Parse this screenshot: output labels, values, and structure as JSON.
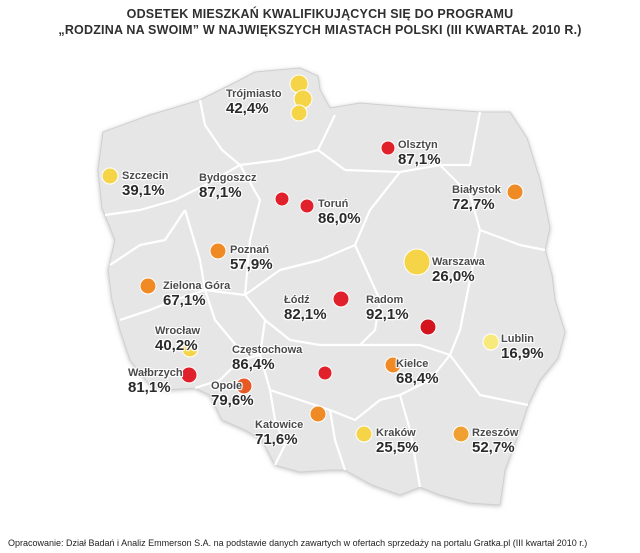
{
  "title": {
    "line1": "ODSETEK MIESZKAŃ KWALIFIKUJĄCYCH SIĘ DO PROGRAMU",
    "line2": "„RODZINA NA SWOIM” W NAJWIĘKSZYCH MIASTACH POLSKI (III KWARTAŁ 2010 R.)"
  },
  "footer": "Opracowanie: Dział Badań i Analiz Emmerson S.A. na podstawie danych zawartych w ofertach sprzedaży na portalu Gratka.pl (III kwartał 2010 r.)",
  "colors": {
    "map_fill": "#e6e6e6",
    "map_border": "#ffffff",
    "marker_red": "#e0202a",
    "marker_orange": "#f08a24",
    "marker_yellow": "#f5d547",
    "marker_pale": "#f7e97c"
  },
  "chart_data": {
    "type": "map",
    "cities": [
      {
        "name": "Trójmiasto",
        "value": "42,4%",
        "color": "#f5d547"
      },
      {
        "name": "Olsztyn",
        "value": "87,1%",
        "color": "#e0202a"
      },
      {
        "name": "Szczecin",
        "value": "39,1%",
        "color": "#f5d547"
      },
      {
        "name": "Bydgoszcz",
        "value": "87,1%",
        "color": "#e0202a"
      },
      {
        "name": "Toruń",
        "value": "86,0%",
        "color": "#e0202a"
      },
      {
        "name": "Białystok",
        "value": "72,7%",
        "color": "#f08a24"
      },
      {
        "name": "Poznań",
        "value": "57,9%",
        "color": "#f08a24"
      },
      {
        "name": "Warszawa",
        "value": "26,0%",
        "color": "#f5d547"
      },
      {
        "name": "Zielona Góra",
        "value": "67,1%",
        "color": "#f08a24"
      },
      {
        "name": "Łódź",
        "value": "82,1%",
        "color": "#e0202a"
      },
      {
        "name": "Radom",
        "value": "92,1%",
        "color": "#d3141f"
      },
      {
        "name": "Lublin",
        "value": "16,9%",
        "color": "#f7e97c"
      },
      {
        "name": "Wrocław",
        "value": "40,2%",
        "color": "#f5d547"
      },
      {
        "name": "Częstochowa",
        "value": "86,4%",
        "color": "#e0202a"
      },
      {
        "name": "Wałbrzych",
        "value": "81,1%",
        "color": "#e0202a"
      },
      {
        "name": "Opole",
        "value": "79,6%",
        "color": "#e85a24"
      },
      {
        "name": "Kielce",
        "value": "68,4%",
        "color": "#f08a24"
      },
      {
        "name": "Katowice",
        "value": "71,6%",
        "color": "#f08a24"
      },
      {
        "name": "Kraków",
        "value": "25,5%",
        "color": "#f5d547"
      },
      {
        "name": "Rzeszów",
        "value": "52,7%",
        "color": "#f0a030"
      }
    ]
  }
}
